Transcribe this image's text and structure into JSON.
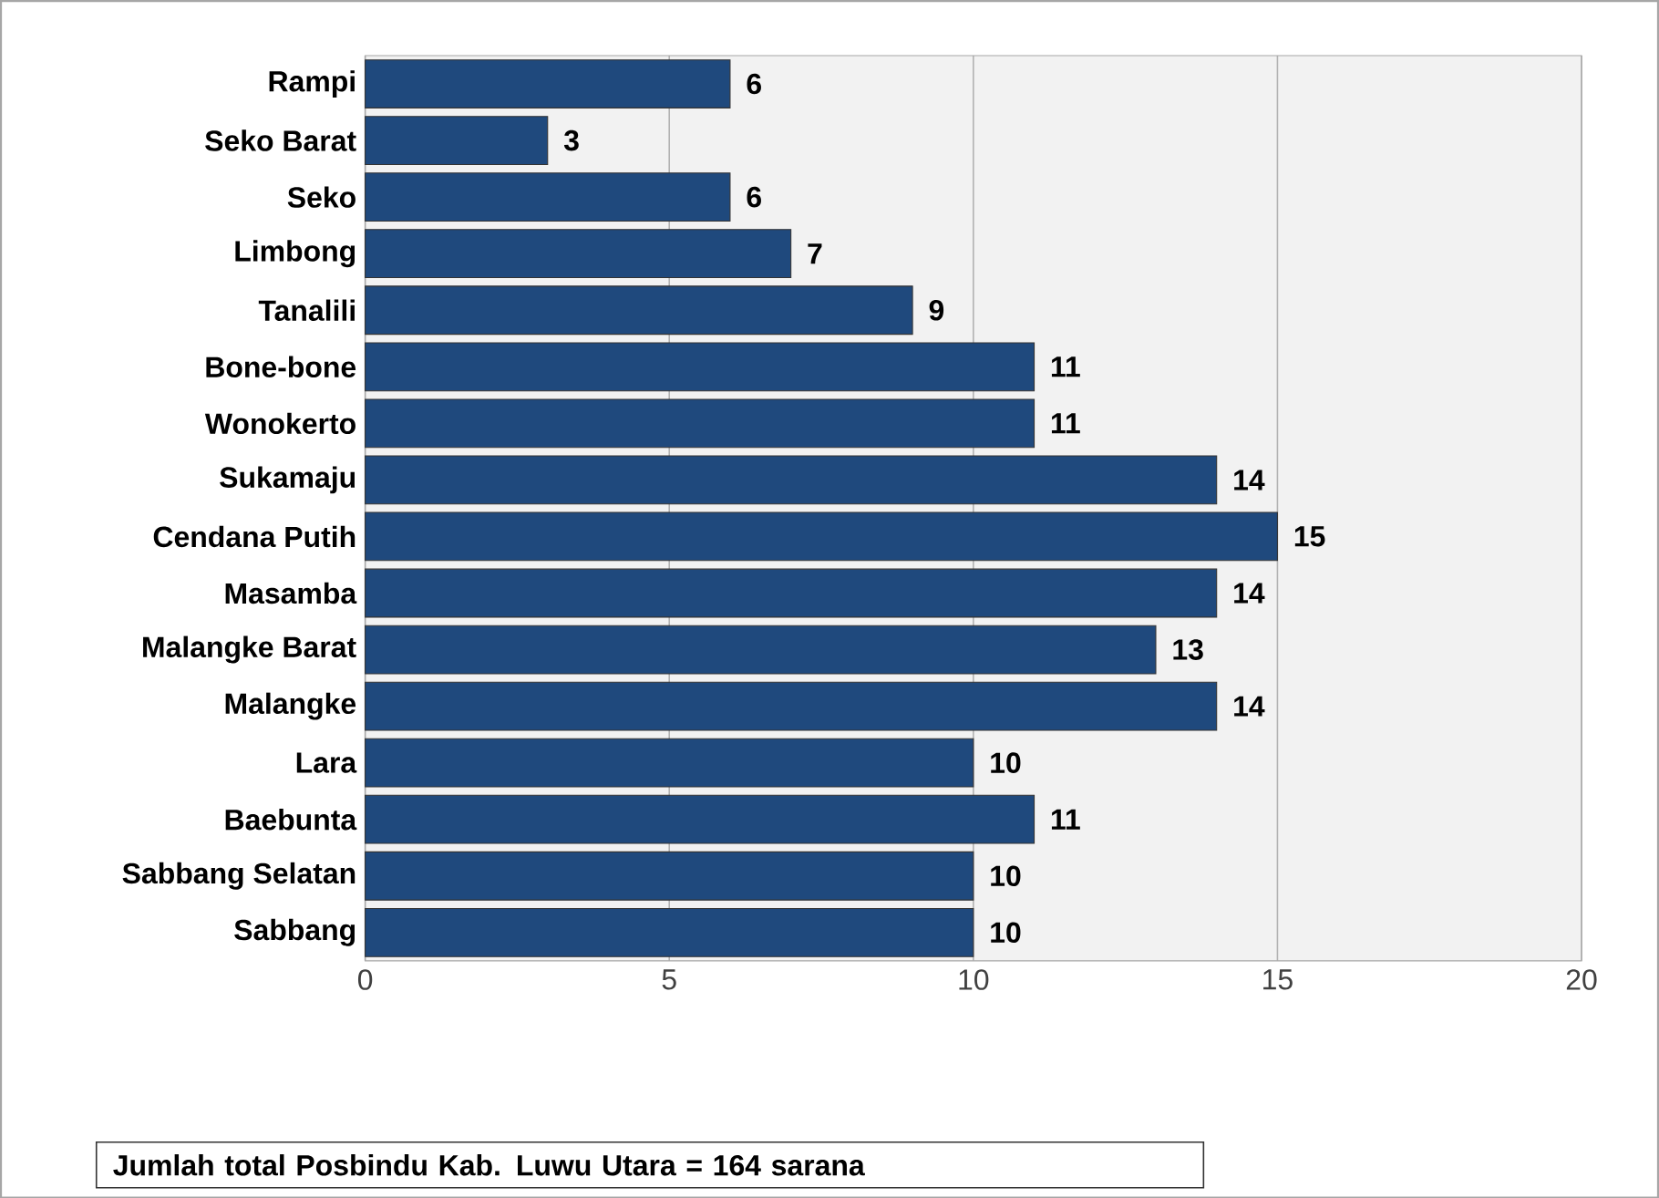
{
  "chart_data": {
    "type": "bar",
    "orientation": "horizontal",
    "categories": [
      "Rampi",
      "Seko Barat",
      "Seko",
      "Limbong",
      "Tanalili",
      "Bone-bone",
      "Wonokerto",
      "Sukamaju",
      "Cendana Putih",
      "Masamba",
      "Malangke Barat",
      "Malangke",
      "Lara",
      "Baebunta",
      "Sabbang Selatan",
      "Sabbang"
    ],
    "values": [
      6,
      3,
      6,
      7,
      9,
      11,
      11,
      14,
      15,
      14,
      13,
      14,
      10,
      11,
      10,
      10
    ],
    "color": "#1f497d",
    "xlim": [
      0,
      20
    ],
    "xticks": [
      0,
      5,
      10,
      15,
      20
    ],
    "grid": "x",
    "data_labels": true,
    "annotations": [
      "Jumlah total Posbindu Kab. Luwu Utara = 164 sarana"
    ]
  }
}
